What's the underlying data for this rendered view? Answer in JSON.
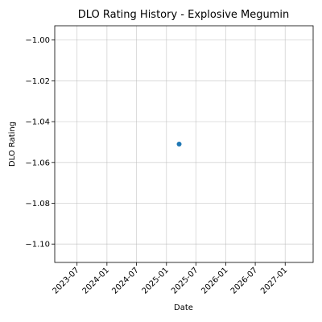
{
  "chart_data": {
    "type": "scatter",
    "title": "DLO Rating History - Explosive Megumin",
    "xlabel": "Date",
    "ylabel": "DLO Rating",
    "x_ticks": [
      "2023-07",
      "2024-01",
      "2024-07",
      "2025-01",
      "2025-07",
      "2026-01",
      "2026-07",
      "2027-01"
    ],
    "y_ticks": [
      -1.0,
      -1.02,
      -1.04,
      -1.06,
      -1.08,
      -1.1
    ],
    "y_tick_labels": [
      "−1.00",
      "−1.02",
      "−1.04",
      "−1.06",
      "−1.08",
      "−1.10"
    ],
    "xlim": [
      "2023-02-14",
      "2027-06-22"
    ],
    "ylim": [
      -1.109,
      -0.993
    ],
    "points": [
      {
        "x": "2025-03-20",
        "y": -1.051
      }
    ],
    "marker_color": "#1f77b4",
    "grid": true
  }
}
